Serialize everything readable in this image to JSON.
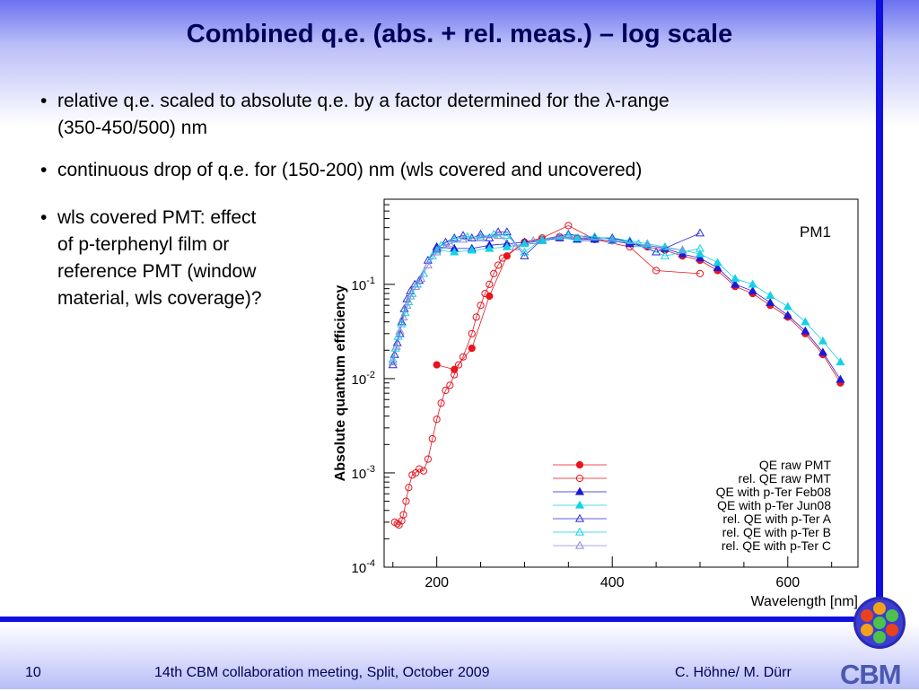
{
  "slide": {
    "title": "Combined q.e. (abs. + rel. meas.) – log scale",
    "bullets": [
      "relative q.e. scaled to absolute q.e. by a factor determined for the λ-range",
      "(350-450/500) nm",
      "continuous drop of q.e. for (150-200) nm (wls covered and uncovered)",
      "wls covered PMT: effect",
      "of p-terphenyl film or",
      "reference PMT (window",
      "material, wls coverage)?"
    ],
    "bullet_char": "•",
    "footer": {
      "page_number": "10",
      "meeting": "14th CBM collaboration meeting, Split, October 2009",
      "authors": "C. Höhne/ M. Dürr",
      "logo_text": "CBM"
    },
    "colors": {
      "title": "#00005a",
      "accent_blue": "#1010e0"
    }
  },
  "chart_data": {
    "type": "scatter",
    "title": "",
    "annotation": "PM1",
    "xlabel": "Wavelength [nm]",
    "ylabel": "Absolute quantum efficiency",
    "xlim": [
      140,
      680
    ],
    "ylim": [
      0.0001,
      0.8
    ],
    "yscale": "log",
    "xticks": [
      200,
      400,
      600
    ],
    "yticks": [
      {
        "value": 0.0001,
        "base": "10",
        "exp": "-4"
      },
      {
        "value": 0.001,
        "base": "10",
        "exp": "-3"
      },
      {
        "value": 0.01,
        "base": "10",
        "exp": "-2"
      },
      {
        "value": 0.1,
        "base": "10",
        "exp": "-1"
      }
    ],
    "legend_position": "bottom-right",
    "series": [
      {
        "name": "QE raw PMT",
        "color": "#e8141e",
        "marker": "circle",
        "filled": true,
        "x": [
          200,
          220,
          240,
          260,
          280,
          300,
          320,
          340,
          360,
          380,
          400,
          420,
          440,
          460,
          480,
          500,
          520,
          540,
          560,
          580,
          600,
          620,
          640,
          660
        ],
        "y": [
          0.014,
          0.0125,
          0.021,
          0.075,
          0.2,
          0.28,
          0.3,
          0.32,
          0.31,
          0.3,
          0.29,
          0.27,
          0.25,
          0.23,
          0.2,
          0.18,
          0.14,
          0.095,
          0.08,
          0.06,
          0.045,
          0.03,
          0.018,
          0.009
        ]
      },
      {
        "name": "rel. QE raw PMT",
        "color": "#e8141e",
        "marker": "circle",
        "filled": false,
        "x": [
          152,
          155,
          157,
          160,
          162,
          165,
          168,
          172,
          176,
          180,
          185,
          190,
          195,
          200,
          205,
          210,
          215,
          220,
          225,
          230,
          240,
          245,
          250,
          255,
          260,
          265,
          270,
          275,
          300,
          320,
          350,
          380,
          420,
          450,
          500
        ],
        "y": [
          0.0003,
          0.00029,
          0.00028,
          0.00031,
          0.00036,
          0.0005,
          0.0007,
          0.00095,
          0.001,
          0.0011,
          0.00105,
          0.0014,
          0.0023,
          0.0037,
          0.0055,
          0.0075,
          0.0085,
          0.011,
          0.014,
          0.017,
          0.03,
          0.045,
          0.06,
          0.08,
          0.1,
          0.13,
          0.16,
          0.19,
          0.28,
          0.31,
          0.42,
          0.3,
          0.25,
          0.14,
          0.13
        ]
      },
      {
        "name": "QE with p-Ter Feb08",
        "color": "#1a1ad6",
        "marker": "triangle",
        "filled": true,
        "x": [
          200,
          220,
          240,
          260,
          280,
          300,
          320,
          340,
          360,
          380,
          400,
          420,
          440,
          460,
          480,
          500,
          520,
          540,
          560,
          580,
          600,
          620,
          640,
          660
        ],
        "y": [
          0.25,
          0.24,
          0.24,
          0.26,
          0.27,
          0.28,
          0.29,
          0.31,
          0.3,
          0.3,
          0.29,
          0.27,
          0.26,
          0.24,
          0.21,
          0.19,
          0.15,
          0.1,
          0.085,
          0.064,
          0.047,
          0.032,
          0.019,
          0.0098
        ]
      },
      {
        "name": "QE with p-Ter Jun08",
        "color": "#14d2e6",
        "marker": "triangle",
        "filled": true,
        "x": [
          200,
          220,
          240,
          260,
          280,
          300,
          320,
          340,
          360,
          380,
          400,
          420,
          440,
          460,
          480,
          500,
          520,
          540,
          560,
          580,
          600,
          620,
          640,
          660
        ],
        "y": [
          0.23,
          0.22,
          0.23,
          0.24,
          0.25,
          0.27,
          0.29,
          0.32,
          0.31,
          0.31,
          0.31,
          0.29,
          0.27,
          0.25,
          0.23,
          0.21,
          0.17,
          0.115,
          0.1,
          0.076,
          0.058,
          0.04,
          0.025,
          0.015
        ]
      },
      {
        "name": "rel. QE with p-Ter A",
        "color": "#2a2ad6",
        "marker": "triangle",
        "filled": false,
        "x": [
          150,
          152,
          155,
          158,
          160,
          163,
          166,
          170,
          175,
          180,
          190,
          200,
          210,
          220,
          230,
          240,
          250,
          260,
          270,
          280,
          300,
          320,
          350,
          380,
          400,
          420,
          450,
          500
        ],
        "y": [
          0.014,
          0.018,
          0.024,
          0.03,
          0.04,
          0.055,
          0.07,
          0.085,
          0.1,
          0.11,
          0.18,
          0.24,
          0.28,
          0.31,
          0.33,
          0.31,
          0.34,
          0.31,
          0.36,
          0.36,
          0.2,
          0.3,
          0.34,
          0.31,
          0.31,
          0.28,
          0.22,
          0.35
        ]
      },
      {
        "name": "rel. QE with p-Ter B",
        "color": "#14d2e6",
        "marker": "triangle",
        "filled": false,
        "x": [
          150,
          153,
          156,
          160,
          164,
          168,
          172,
          178,
          185,
          195,
          205,
          220,
          235,
          250,
          265,
          280,
          300,
          320,
          350,
          380,
          400,
          430,
          460,
          500
        ],
        "y": [
          0.016,
          0.021,
          0.028,
          0.038,
          0.05,
          0.065,
          0.08,
          0.1,
          0.13,
          0.2,
          0.26,
          0.3,
          0.32,
          0.32,
          0.34,
          0.33,
          0.22,
          0.3,
          0.33,
          0.32,
          0.3,
          0.27,
          0.2,
          0.24
        ]
      },
      {
        "name": "rel. QE with p-Ter C",
        "color": "#8a8ad8",
        "marker": "triangle",
        "filled": false,
        "x": [
          150,
          154,
          158,
          162,
          166,
          170,
          176,
          182,
          190,
          200,
          215,
          230,
          250,
          270,
          290,
          310,
          340,
          370,
          400,
          440,
          480
        ],
        "y": [
          0.015,
          0.022,
          0.032,
          0.045,
          0.06,
          0.075,
          0.095,
          0.115,
          0.16,
          0.22,
          0.27,
          0.3,
          0.31,
          0.33,
          0.25,
          0.29,
          0.32,
          0.31,
          0.29,
          0.26,
          0.23
        ]
      }
    ]
  }
}
